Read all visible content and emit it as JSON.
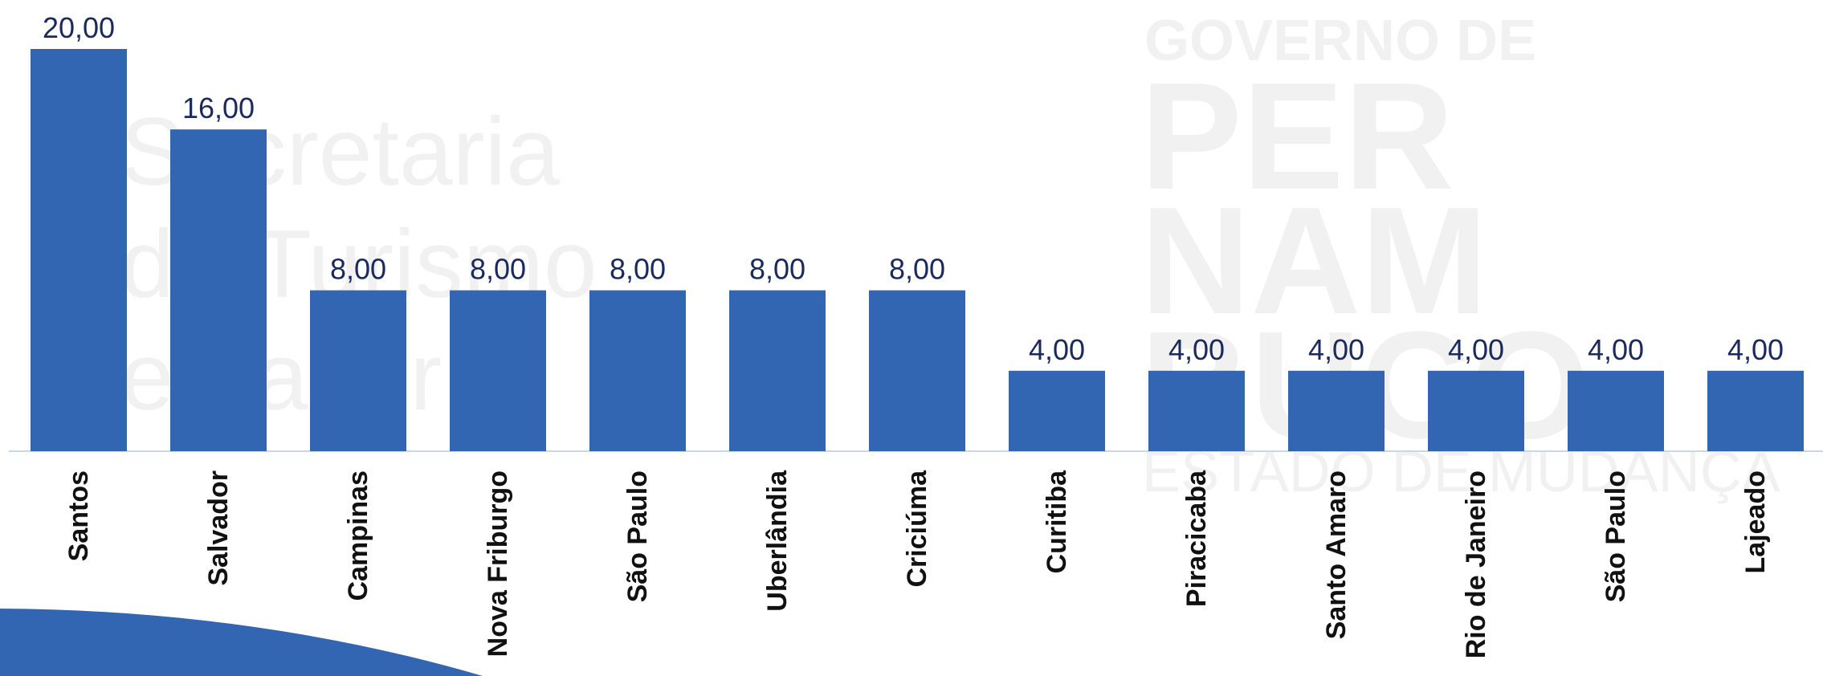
{
  "chart_data": {
    "type": "bar",
    "categories": [
      "Santos",
      "Salvador",
      "Campinas",
      "Nova Friburgo",
      "São Paulo",
      "Uberlândia",
      "Criciúma",
      "Curitiba",
      "Piracicaba",
      "Santo Amaro",
      "Rio de Janeiro",
      "São Paulo",
      "Lajeado"
    ],
    "values": [
      20,
      16,
      8,
      8,
      8,
      8,
      8,
      4,
      4,
      4,
      4,
      4,
      4
    ],
    "value_labels": [
      "20,00",
      "16,00",
      "8,00",
      "8,00",
      "8,00",
      "8,00",
      "8,00",
      "4,00",
      "4,00",
      "4,00",
      "4,00",
      "4,00",
      "4,00"
    ],
    "color": "#3366b2",
    "ylim": [
      0,
      20
    ],
    "watermark": [
      "Secretaria",
      "de Turismo",
      "e Lazer",
      "GOVERNO DE",
      "PER",
      "NAM",
      "BUCO",
      "ESTADO DE MUDANÇA"
    ]
  }
}
